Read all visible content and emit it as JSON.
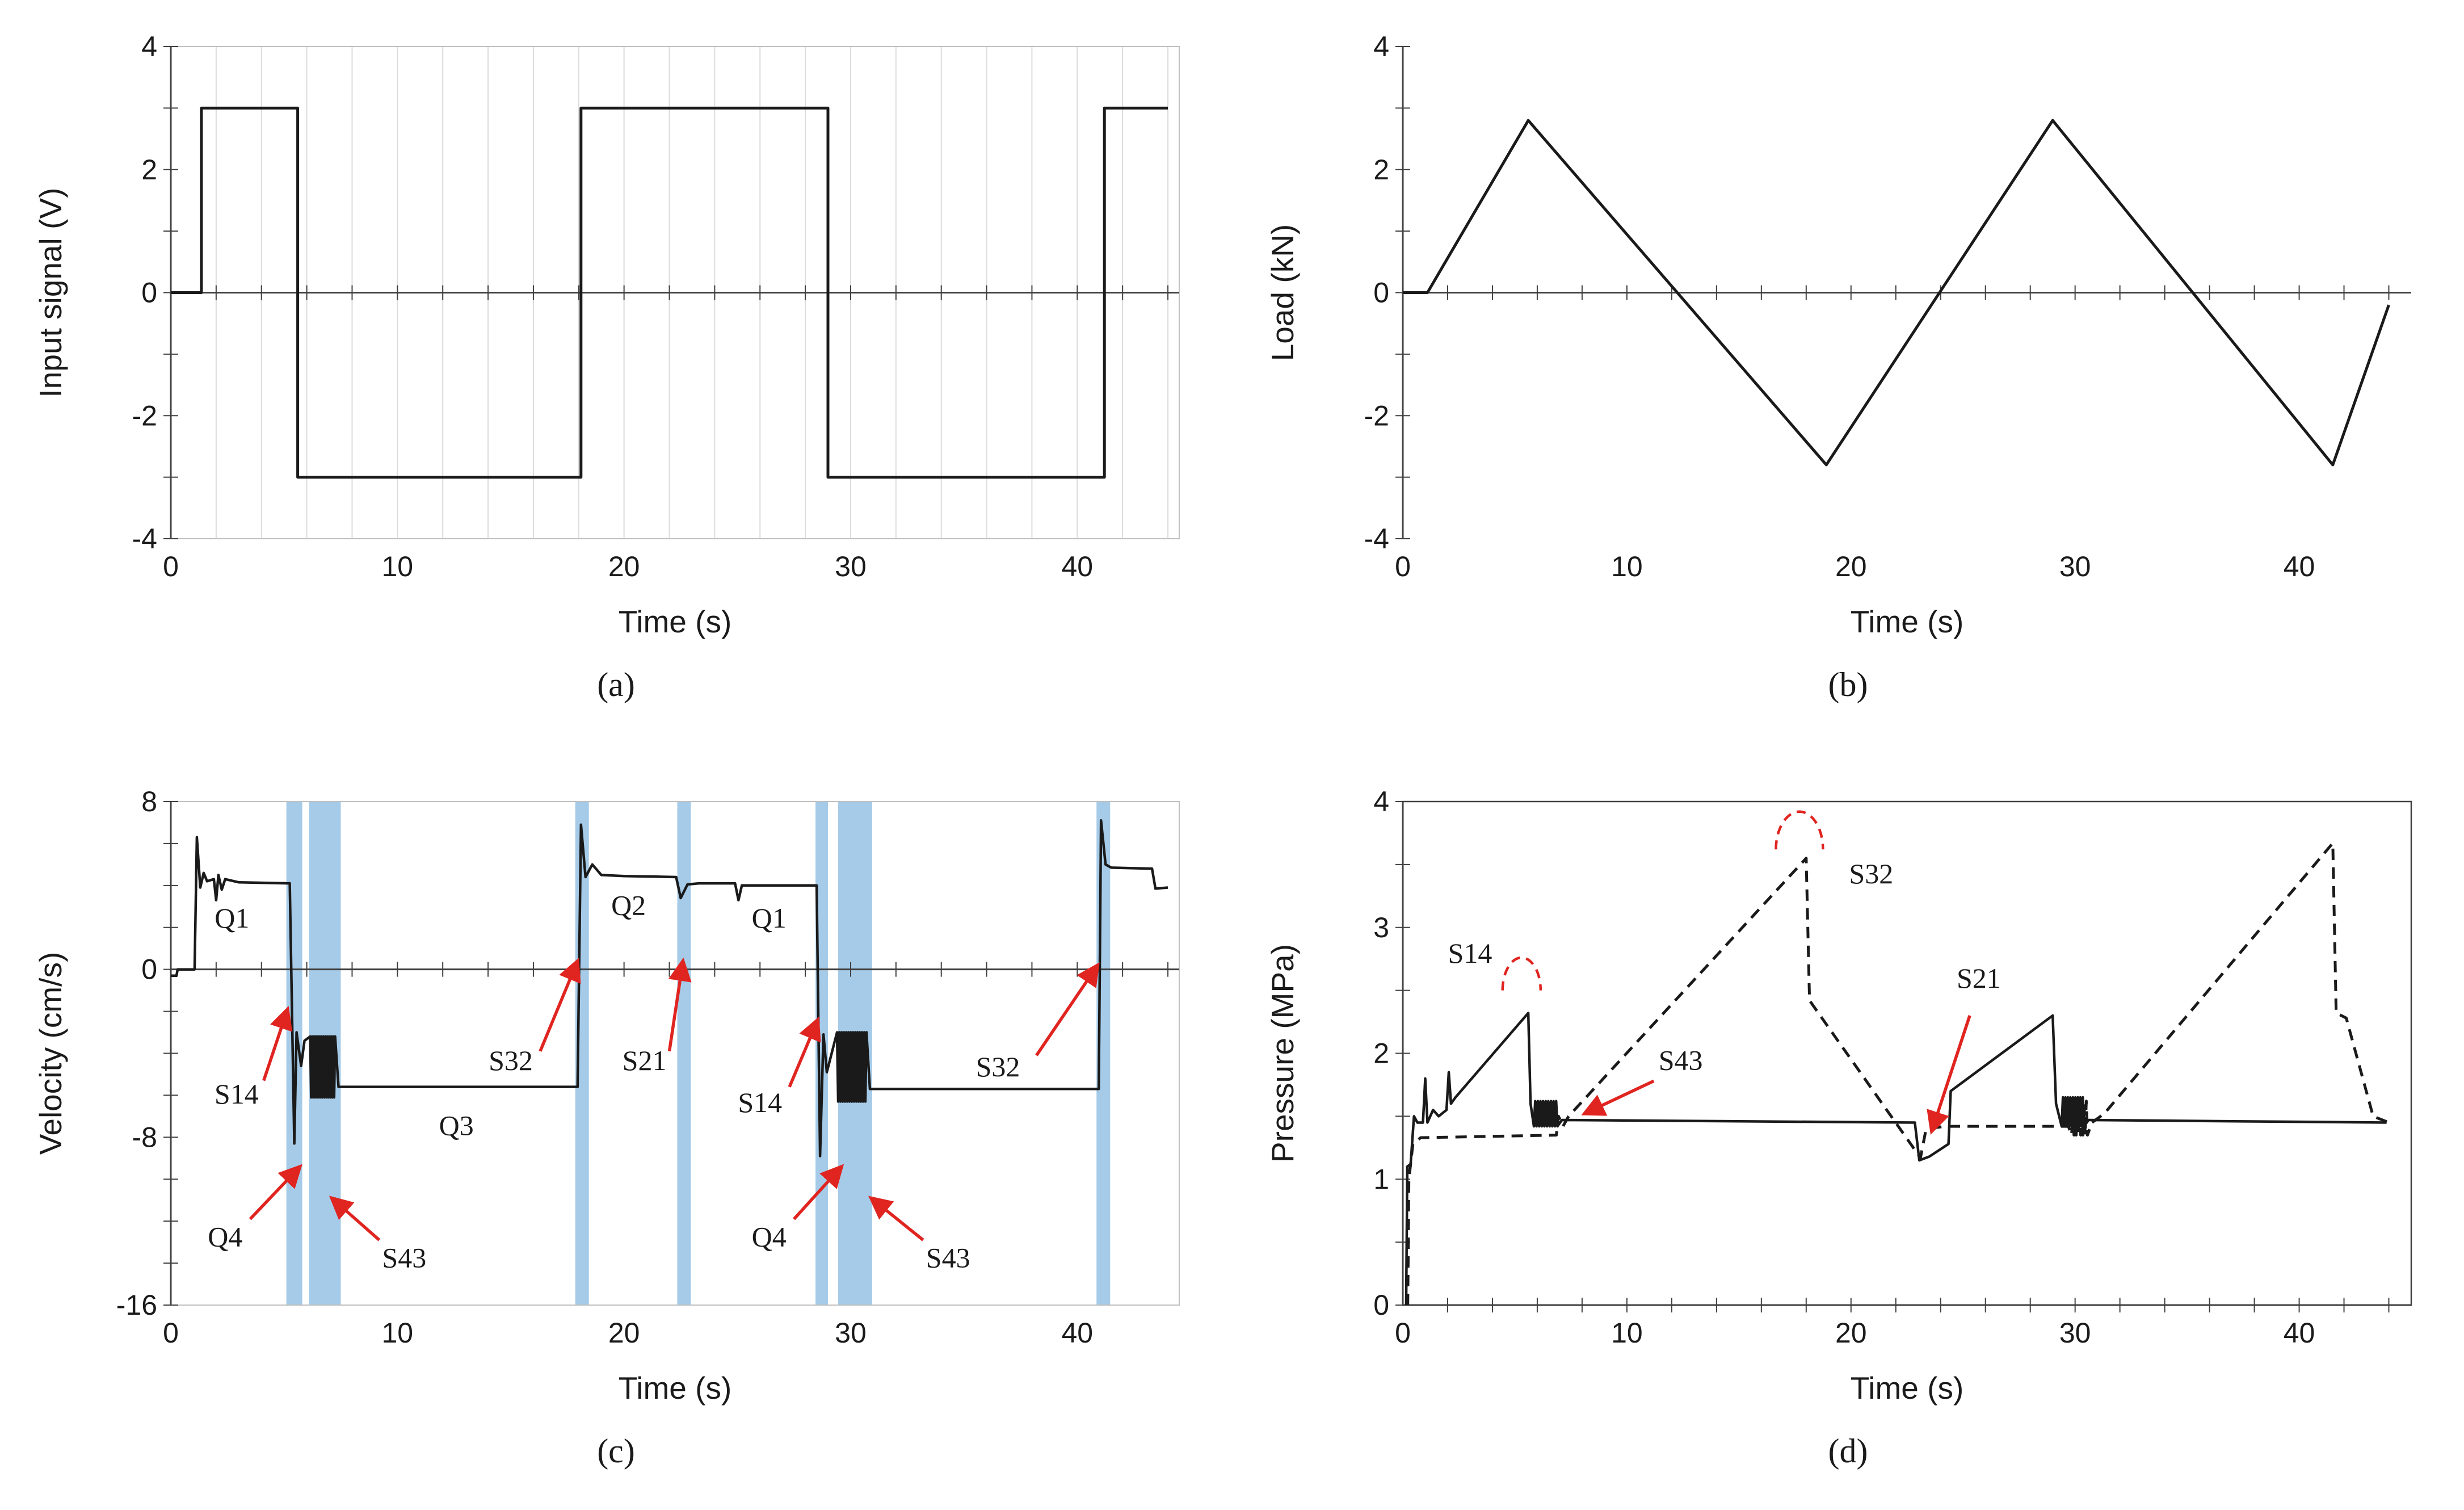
{
  "figure": {
    "background": "#ffffff",
    "axis_color": "#404040",
    "grid_color": "#dcdcdc",
    "box_color": "#c0c0c0",
    "text_color": "#1a1a1a",
    "annotation_red": "#e02420",
    "line_black": "#1a1a1a"
  },
  "chart_data": [
    {
      "type": "line",
      "caption": "(a)",
      "title": "",
      "xlabel": "Time (s)",
      "ylabel": "Input signal (V)",
      "xlim": [
        0,
        44.5
      ],
      "ylim": [
        -4,
        4
      ],
      "xticks": [
        0,
        10,
        20,
        30,
        40
      ],
      "yticks": [
        -4,
        -2,
        0,
        2,
        4
      ],
      "xminor": 2,
      "yminor": 1,
      "grid_x_step": 2,
      "box": true,
      "axis_at_zero": true,
      "series": [
        {
          "name": "input-signal",
          "style": "solid",
          "color": "#1a1a1a",
          "width": 5,
          "points": [
            [
              0,
              0
            ],
            [
              1.35,
              0
            ],
            [
              1.35,
              3
            ],
            [
              5.6,
              3
            ],
            [
              5.6,
              -3
            ],
            [
              18.1,
              -3
            ],
            [
              18.1,
              3
            ],
            [
              29,
              3
            ],
            [
              29,
              -3
            ],
            [
              41.2,
              -3
            ],
            [
              41.2,
              3
            ],
            [
              44,
              3
            ]
          ]
        }
      ]
    },
    {
      "type": "line",
      "caption": "(b)",
      "title": "",
      "xlabel": "Time (s)",
      "ylabel": "Load (kN)",
      "xlim": [
        0,
        45
      ],
      "ylim": [
        -4,
        4
      ],
      "xticks": [
        0,
        10,
        20,
        30,
        40
      ],
      "yticks": [
        -4,
        -2,
        0,
        2,
        4
      ],
      "xminor": 2,
      "yminor": 1,
      "grid_x_step": 0,
      "box": false,
      "axis_at_zero": true,
      "series": [
        {
          "name": "load",
          "style": "solid",
          "color": "#1a1a1a",
          "width": 5,
          "points": [
            [
              0,
              0
            ],
            [
              1.1,
              0
            ],
            [
              5.6,
              2.8
            ],
            [
              18.9,
              -2.8
            ],
            [
              29,
              2.8
            ],
            [
              41.5,
              -2.8
            ],
            [
              44,
              -0.2
            ]
          ]
        }
      ]
    },
    {
      "type": "line",
      "caption": "(c)",
      "title": "",
      "xlabel": "Time (s)",
      "ylabel": "Velocity (cm/s)",
      "xlim": [
        0,
        44.5
      ],
      "ylim": [
        -16,
        8
      ],
      "xticks": [
        0,
        10,
        20,
        30,
        40
      ],
      "yticks": [
        -16,
        -8,
        0,
        8
      ],
      "xminor": 2,
      "yminor": 2,
      "grid_x_step": 0,
      "box": true,
      "axis_at_zero": true,
      "band_color": "#a6cbe8",
      "bands": [
        [
          5.1,
          5.8
        ],
        [
          6.1,
          7.5
        ],
        [
          17.85,
          18.45
        ],
        [
          22.35,
          22.95
        ],
        [
          28.45,
          29.0
        ],
        [
          29.45,
          30.95
        ],
        [
          40.85,
          41.45
        ]
      ],
      "series": [
        {
          "name": "velocity",
          "style": "solid",
          "color": "#1a1a1a",
          "width": 4.5,
          "points": [
            [
              0,
              -0.3
            ],
            [
              0.25,
              -0.3
            ],
            [
              0.3,
              0
            ],
            [
              1.05,
              0
            ],
            [
              1.15,
              6.3
            ],
            [
              1.3,
              3.9
            ],
            [
              1.45,
              4.6
            ],
            [
              1.6,
              4.2
            ],
            [
              1.9,
              4.3
            ],
            [
              2.0,
              3.3
            ],
            [
              2.1,
              4.5
            ],
            [
              2.25,
              3.8
            ],
            [
              2.4,
              4.3
            ],
            [
              3.0,
              4.15
            ],
            [
              5.25,
              4.1
            ],
            [
              5.45,
              -8.3
            ],
            [
              5.55,
              -3.0
            ],
            [
              5.75,
              -4.6
            ],
            [
              5.9,
              -3.4
            ],
            {
              "zig": [
                6.15,
                7.25,
                -3.2,
                -6.1,
                26
              ]
            },
            [
              7.4,
              -5.6
            ],
            [
              17.95,
              -5.6
            ],
            [
              18.1,
              6.9
            ],
            [
              18.3,
              4.4
            ],
            [
              18.6,
              5.0
            ],
            [
              19.0,
              4.5
            ],
            [
              20.0,
              4.45
            ],
            [
              22.3,
              4.4
            ],
            [
              22.5,
              3.4
            ],
            [
              22.8,
              4.05
            ],
            [
              23.3,
              4.1
            ],
            [
              24.9,
              4.1
            ],
            [
              25.05,
              3.3
            ],
            [
              25.2,
              4.0
            ],
            [
              28.5,
              4.0
            ],
            [
              28.65,
              -8.9
            ],
            [
              28.8,
              -3.1
            ],
            [
              28.95,
              -4.9
            ],
            {
              "zig": [
                29.4,
                30.7,
                -3.0,
                -6.3,
                26
              ]
            },
            [
              30.85,
              -5.7
            ],
            [
              40.95,
              -5.7
            ],
            [
              41.05,
              7.1
            ],
            [
              41.25,
              5.0
            ],
            [
              41.5,
              4.85
            ],
            [
              43.3,
              4.8
            ],
            [
              43.45,
              3.85
            ],
            [
              44,
              3.9
            ]
          ]
        }
      ],
      "labels": [
        {
          "x": 2.7,
          "y": 2.0,
          "text": "Q1"
        },
        {
          "x": 20.2,
          "y": 2.6,
          "text": "Q2"
        },
        {
          "x": 26.4,
          "y": 2.0,
          "text": "Q1"
        },
        {
          "x": 12.6,
          "y": -7.9,
          "text": "Q3"
        },
        {
          "x": 2.9,
          "y": -6.4,
          "text": "S14"
        },
        {
          "x": 15.0,
          "y": -4.8,
          "text": "S32"
        },
        {
          "x": 20.9,
          "y": -4.8,
          "text": "S21"
        },
        {
          "x": 26.0,
          "y": -6.8,
          "text": "S14"
        },
        {
          "x": 36.5,
          "y": -5.1,
          "text": "S32"
        },
        {
          "x": 2.4,
          "y": -13.2,
          "text": "Q4"
        },
        {
          "x": 26.4,
          "y": -13.2,
          "text": "Q4"
        },
        {
          "x": 10.3,
          "y": -14.2,
          "text": "S43"
        },
        {
          "x": 34.3,
          "y": -14.2,
          "text": "S43"
        }
      ],
      "arrows": [
        {
          "from": [
            4.1,
            -5.3
          ],
          "to": [
            5.15,
            -1.9
          ]
        },
        {
          "from": [
            16.3,
            -3.9
          ],
          "to": [
            17.95,
            0.4
          ]
        },
        {
          "from": [
            22.0,
            -3.9
          ],
          "to": [
            22.6,
            0.4
          ]
        },
        {
          "from": [
            27.3,
            -5.6
          ],
          "to": [
            28.55,
            -2.4
          ]
        },
        {
          "from": [
            38.2,
            -4.1
          ],
          "to": [
            40.9,
            0.2
          ]
        },
        {
          "from": [
            3.5,
            -11.9
          ],
          "to": [
            5.7,
            -9.4
          ]
        },
        {
          "from": [
            27.5,
            -11.9
          ],
          "to": [
            29.6,
            -9.4
          ]
        },
        {
          "from": [
            9.2,
            -12.9
          ],
          "to": [
            7.1,
            -10.9
          ]
        },
        {
          "from": [
            33.2,
            -12.9
          ],
          "to": [
            30.9,
            -10.9
          ]
        }
      ]
    },
    {
      "type": "line",
      "caption": "(d)",
      "title": "",
      "xlabel": "Time (s)",
      "ylabel": "Pressure (MPa)",
      "xlim": [
        0,
        45
      ],
      "ylim": [
        0,
        4
      ],
      "xticks": [
        0,
        10,
        20,
        30,
        40
      ],
      "yticks": [
        0,
        1,
        2,
        3,
        4
      ],
      "xminor": 2,
      "yminor": 0.5,
      "grid_x_step": 0,
      "box": true,
      "box_dark": true,
      "axis_at_zero": false,
      "series": [
        {
          "name": "pressure-solid",
          "style": "solid",
          "color": "#1a1a1a",
          "width": 4.5,
          "points": [
            [
              0.15,
              0
            ],
            [
              0.2,
              1.1
            ],
            [
              0.35,
              1.12
            ],
            [
              0.5,
              1.5
            ],
            [
              0.65,
              1.45
            ],
            [
              0.9,
              1.45
            ],
            [
              1.0,
              1.8
            ],
            [
              1.1,
              1.45
            ],
            [
              1.35,
              1.55
            ],
            [
              1.6,
              1.5
            ],
            [
              1.95,
              1.55
            ],
            [
              2.05,
              1.85
            ],
            [
              2.15,
              1.6
            ],
            [
              2.35,
              1.65
            ],
            [
              5.6,
              2.32
            ],
            [
              5.7,
              1.6
            ],
            {
              "zig": [
                5.85,
                6.9,
                1.42,
                1.62,
                18
              ]
            },
            [
              7.1,
              1.47
            ],
            [
              22.85,
              1.45
            ],
            [
              23.05,
              1.15
            ],
            [
              23.5,
              1.18
            ],
            [
              24.35,
              1.28
            ],
            [
              24.45,
              1.7
            ],
            [
              29.0,
              2.3
            ],
            [
              29.15,
              1.6
            ],
            {
              "zig": [
                29.4,
                30.4,
                1.42,
                1.65,
                18
              ]
            },
            [
              30.6,
              1.47
            ],
            [
              43.9,
              1.45
            ]
          ]
        },
        {
          "name": "pressure-dashed",
          "style": "dashed",
          "color": "#1a1a1a",
          "width": 5,
          "dash": "20 13",
          "points": [
            [
              0.22,
              0
            ],
            [
              0.27,
              1.0
            ],
            [
              0.45,
              1.28
            ],
            [
              0.8,
              1.33
            ],
            [
              6.85,
              1.35
            ],
            [
              6.95,
              1.5
            ],
            [
              7.15,
              1.42
            ],
            [
              7.4,
              1.5
            ],
            [
              18.0,
              3.55
            ],
            [
              18.15,
              2.42
            ],
            [
              23.1,
              1.17
            ],
            [
              23.35,
              1.4
            ],
            [
              24.2,
              1.42
            ],
            [
              29.7,
              1.42
            ],
            {
              "zig": [
                29.85,
                30.55,
                1.35,
                1.62,
                14
              ]
            },
            [
              30.75,
              1.45
            ],
            [
              31.3,
              1.52
            ],
            [
              41.5,
              3.67
            ],
            [
              41.65,
              2.32
            ],
            [
              42.1,
              2.28
            ],
            [
              43.3,
              1.5
            ],
            [
              44,
              1.45
            ]
          ]
        }
      ],
      "labels": [
        {
          "x": 3.0,
          "y": 2.72,
          "text": "S14"
        },
        {
          "x": 20.9,
          "y": 3.35,
          "text": "S32"
        },
        {
          "x": 12.4,
          "y": 1.87,
          "text": "S43"
        },
        {
          "x": 25.7,
          "y": 2.52,
          "text": "S21"
        }
      ],
      "arrows": [
        {
          "from": [
            11.2,
            1.78
          ],
          "to": [
            8.1,
            1.52
          ]
        },
        {
          "from": [
            25.3,
            2.3
          ],
          "to": [
            23.6,
            1.38
          ]
        }
      ],
      "arcs": [
        {
          "cx": 5.3,
          "cy": 2.5,
          "rx": 0.85,
          "ry": 0.26
        },
        {
          "cx": 17.7,
          "cy": 3.62,
          "rx": 1.05,
          "ry": 0.3
        }
      ]
    }
  ]
}
